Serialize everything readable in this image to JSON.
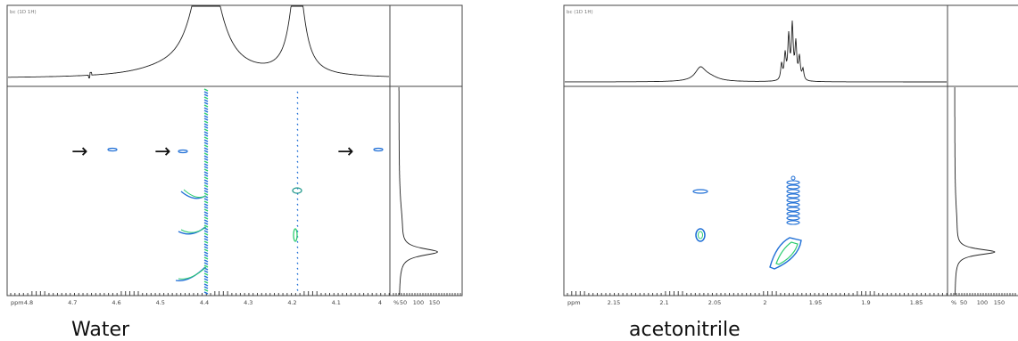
{
  "panels": [
    {
      "header": "bc (1D 1H)",
      "x_ticks": [
        "ppm",
        "4.8",
        "4.7",
        "4.6",
        "4.5",
        "4.4",
        "4.3",
        "4.2",
        "4.1",
        "4"
      ],
      "side_ticks": [
        "%",
        "50",
        "100",
        "150"
      ],
      "arrows": [
        "→",
        "→",
        "→"
      ],
      "caption": "Water"
    },
    {
      "header": "bc (1D 1H)",
      "x_ticks": [
        "ppm",
        "2.15",
        "2.1",
        "2.05",
        "2",
        "1.95",
        "1.9",
        "1.85"
      ],
      "side_ticks": [
        "%",
        "50",
        "100",
        "150"
      ],
      "caption": "acetonitrile"
    }
  ]
}
